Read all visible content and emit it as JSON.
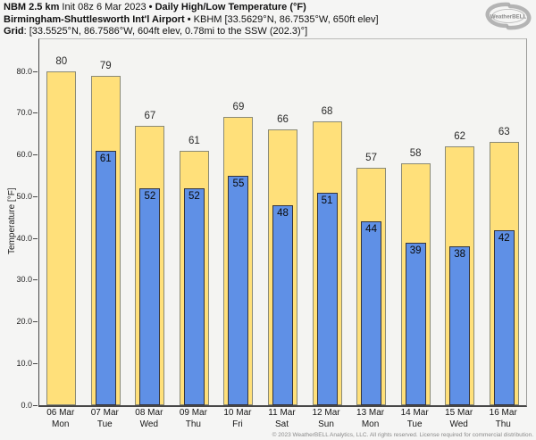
{
  "header": {
    "model": "NBM 2.5 km",
    "init": "Init 08z 6 Mar 2023",
    "separator": "•",
    "product": "Daily High/Low Temperature (°F)",
    "station": "Birmingham-Shuttlesworth Int'l Airport",
    "station_info": "KBHM [33.5629°N, 86.7535°W, 650ft elev]",
    "grid_label": "Grid",
    "grid_info": ": [33.5525°N, 86.7586°W, 604ft elev, 0.78mi to the SSW (202.3)°]"
  },
  "logo": {
    "text": "WeatherBELL"
  },
  "chart_data": {
    "type": "bar",
    "title": "Daily High/Low Temperature (°F)",
    "ylabel": "Temperature [°F]",
    "ylim": [
      0,
      87.7
    ],
    "grid": false,
    "legend_position": "none",
    "yticks": [
      "0.0",
      "10.0",
      "20.0",
      "30.0",
      "40.0",
      "50.0",
      "60.0",
      "70.0",
      "80.0"
    ],
    "ytick_values": [
      0,
      10,
      20,
      30,
      40,
      50,
      60,
      70,
      80
    ],
    "categories": [
      {
        "date": "06 Mar",
        "day": "Mon"
      },
      {
        "date": "07 Mar",
        "day": "Tue"
      },
      {
        "date": "08 Mar",
        "day": "Wed"
      },
      {
        "date": "09 Mar",
        "day": "Thu"
      },
      {
        "date": "10 Mar",
        "day": "Fri"
      },
      {
        "date": "11 Mar",
        "day": "Sat"
      },
      {
        "date": "12 Mar",
        "day": "Sun"
      },
      {
        "date": "13 Mar",
        "day": "Mon"
      },
      {
        "date": "14 Mar",
        "day": "Tue"
      },
      {
        "date": "15 Mar",
        "day": "Wed"
      },
      {
        "date": "16 Mar",
        "day": "Thu"
      }
    ],
    "series": [
      {
        "name": "High",
        "color": "#ffe07a",
        "border_color": "#8a8a76",
        "values": [
          80,
          79,
          67,
          61,
          69,
          66,
          68,
          57,
          58,
          62,
          63
        ]
      },
      {
        "name": "Low",
        "color": "#5f90e6",
        "border_color": "#35353d",
        "values": [
          null,
          61,
          52,
          52,
          55,
          48,
          51,
          44,
          39,
          38,
          42
        ]
      }
    ]
  },
  "footer": {
    "copyright": "© 2023 WeatherBELL Analytics, LLC. All rights reserved. License required for commercial distribution."
  }
}
